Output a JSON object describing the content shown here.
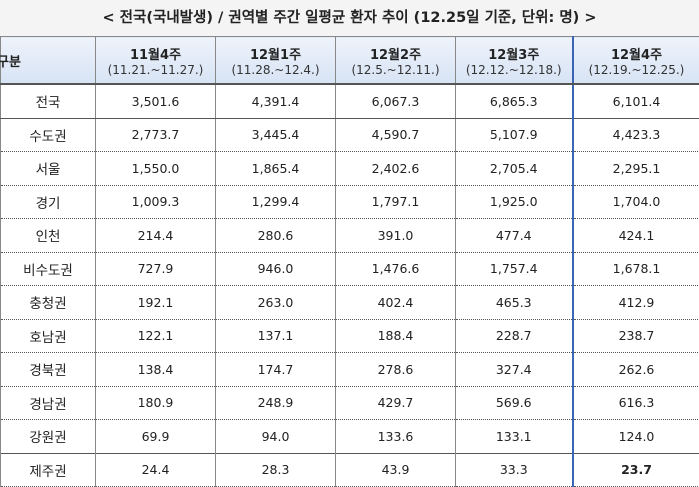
{
  "title": "< 전국(국내발생) / 권역별 주간 일평균 환자 추이 (12.25일 기준, 단위: 명) >",
  "table": {
    "corner": "구분",
    "columns": [
      {
        "week": "11월4주",
        "dates": "(11.21.~11.27.)"
      },
      {
        "week": "12월1주",
        "dates": "(11.28.~12.4.)"
      },
      {
        "week": "12월2주",
        "dates": "(12.5.~12.11.)"
      },
      {
        "week": "12월3주",
        "dates": "(12.12.~12.18.)"
      },
      {
        "week": "12월4주",
        "dates": "(12.19.~12.25.)"
      }
    ],
    "rows": [
      {
        "label": "전국",
        "values": [
          "3,501.6",
          "4,391.4",
          "6,067.3",
          "6,865.3",
          "6,101.4"
        ]
      },
      {
        "label": "수도권",
        "values": [
          "2,773.7",
          "3,445.4",
          "4,590.7",
          "5,107.9",
          "4,423.3"
        ]
      },
      {
        "label": "서울",
        "values": [
          "1,550.0",
          "1,865.4",
          "2,402.6",
          "2,705.4",
          "2,295.1"
        ]
      },
      {
        "label": "경기",
        "values": [
          "1,009.3",
          "1,299.4",
          "1,797.1",
          "1,925.0",
          "1,704.0"
        ]
      },
      {
        "label": "인천",
        "values": [
          "214.4",
          "280.6",
          "391.0",
          "477.4",
          "424.1"
        ]
      },
      {
        "label": "비수도권",
        "values": [
          "727.9",
          "946.0",
          "1,476.6",
          "1,757.4",
          "1,678.1"
        ]
      },
      {
        "label": "충청권",
        "values": [
          "192.1",
          "263.0",
          "402.4",
          "465.3",
          "412.9"
        ]
      },
      {
        "label": "호남권",
        "values": [
          "122.1",
          "137.1",
          "188.4",
          "228.7",
          "238.7"
        ]
      },
      {
        "label": "경북권",
        "values": [
          "138.4",
          "174.7",
          "278.6",
          "327.4",
          "262.6"
        ]
      },
      {
        "label": "경남권",
        "values": [
          "180.9",
          "248.9",
          "429.7",
          "569.6",
          "616.3"
        ]
      },
      {
        "label": "강원권",
        "values": [
          "69.9",
          "94.0",
          "133.6",
          "133.1",
          "124.0"
        ]
      },
      {
        "label": "제주권",
        "values": [
          "24.4",
          "28.3",
          "43.9",
          "33.3",
          "23.7"
        ]
      }
    ]
  }
}
